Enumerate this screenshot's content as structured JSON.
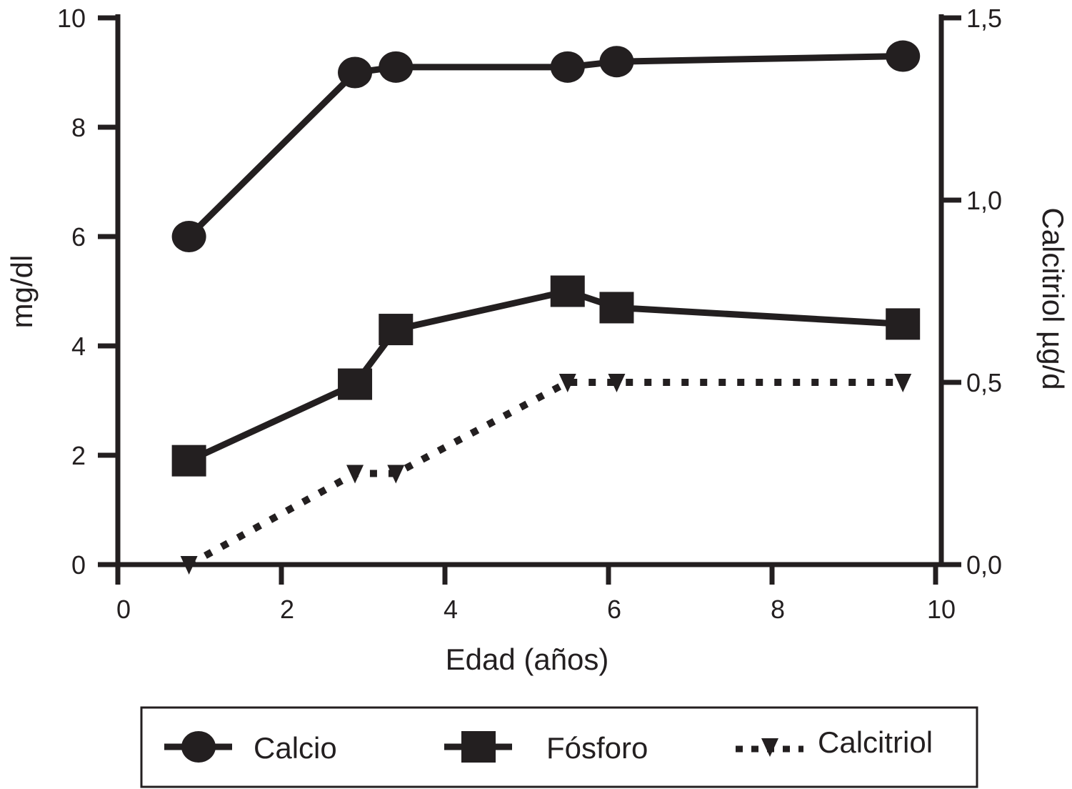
{
  "chart_data": {
    "type": "line",
    "xlabel": "Edad (años)",
    "ylabel": "mg/dl",
    "y2label": "Calcitriol µg/d",
    "xlim": [
      0,
      10
    ],
    "ylim": [
      0,
      10
    ],
    "y2lim": [
      0,
      1.5
    ],
    "xticks": [
      "0",
      "2",
      "4",
      "6",
      "8",
      "10"
    ],
    "yticks": [
      "0",
      "2",
      "4",
      "6",
      "8",
      "10"
    ],
    "y2ticks": [
      "0,0",
      "0,5",
      "1,0",
      "1,5"
    ],
    "grid": false,
    "legend_position": "bottom",
    "series": [
      {
        "name": "Calcio",
        "axis": "left",
        "marker": "circle",
        "line": "solid",
        "x": [
          0.87,
          2.9,
          3.4,
          5.5,
          6.1,
          9.6
        ],
        "y": [
          6.0,
          9.0,
          9.1,
          9.1,
          9.2,
          9.3
        ]
      },
      {
        "name": "Fósforo",
        "axis": "left",
        "marker": "square",
        "line": "solid",
        "x": [
          0.87,
          2.9,
          3.4,
          5.5,
          6.1,
          9.6
        ],
        "y": [
          1.9,
          3.3,
          4.3,
          5.0,
          4.7,
          4.4
        ]
      },
      {
        "name": "Calcitriol",
        "axis": "right",
        "marker": "triangle-down",
        "line": "dotted",
        "x": [
          0.87,
          2.9,
          3.4,
          5.5,
          6.1,
          9.6
        ],
        "y": [
          0.0,
          0.25,
          0.25,
          0.5,
          0.5,
          0.5
        ]
      }
    ],
    "colors": {
      "ink": "#231f20"
    }
  }
}
